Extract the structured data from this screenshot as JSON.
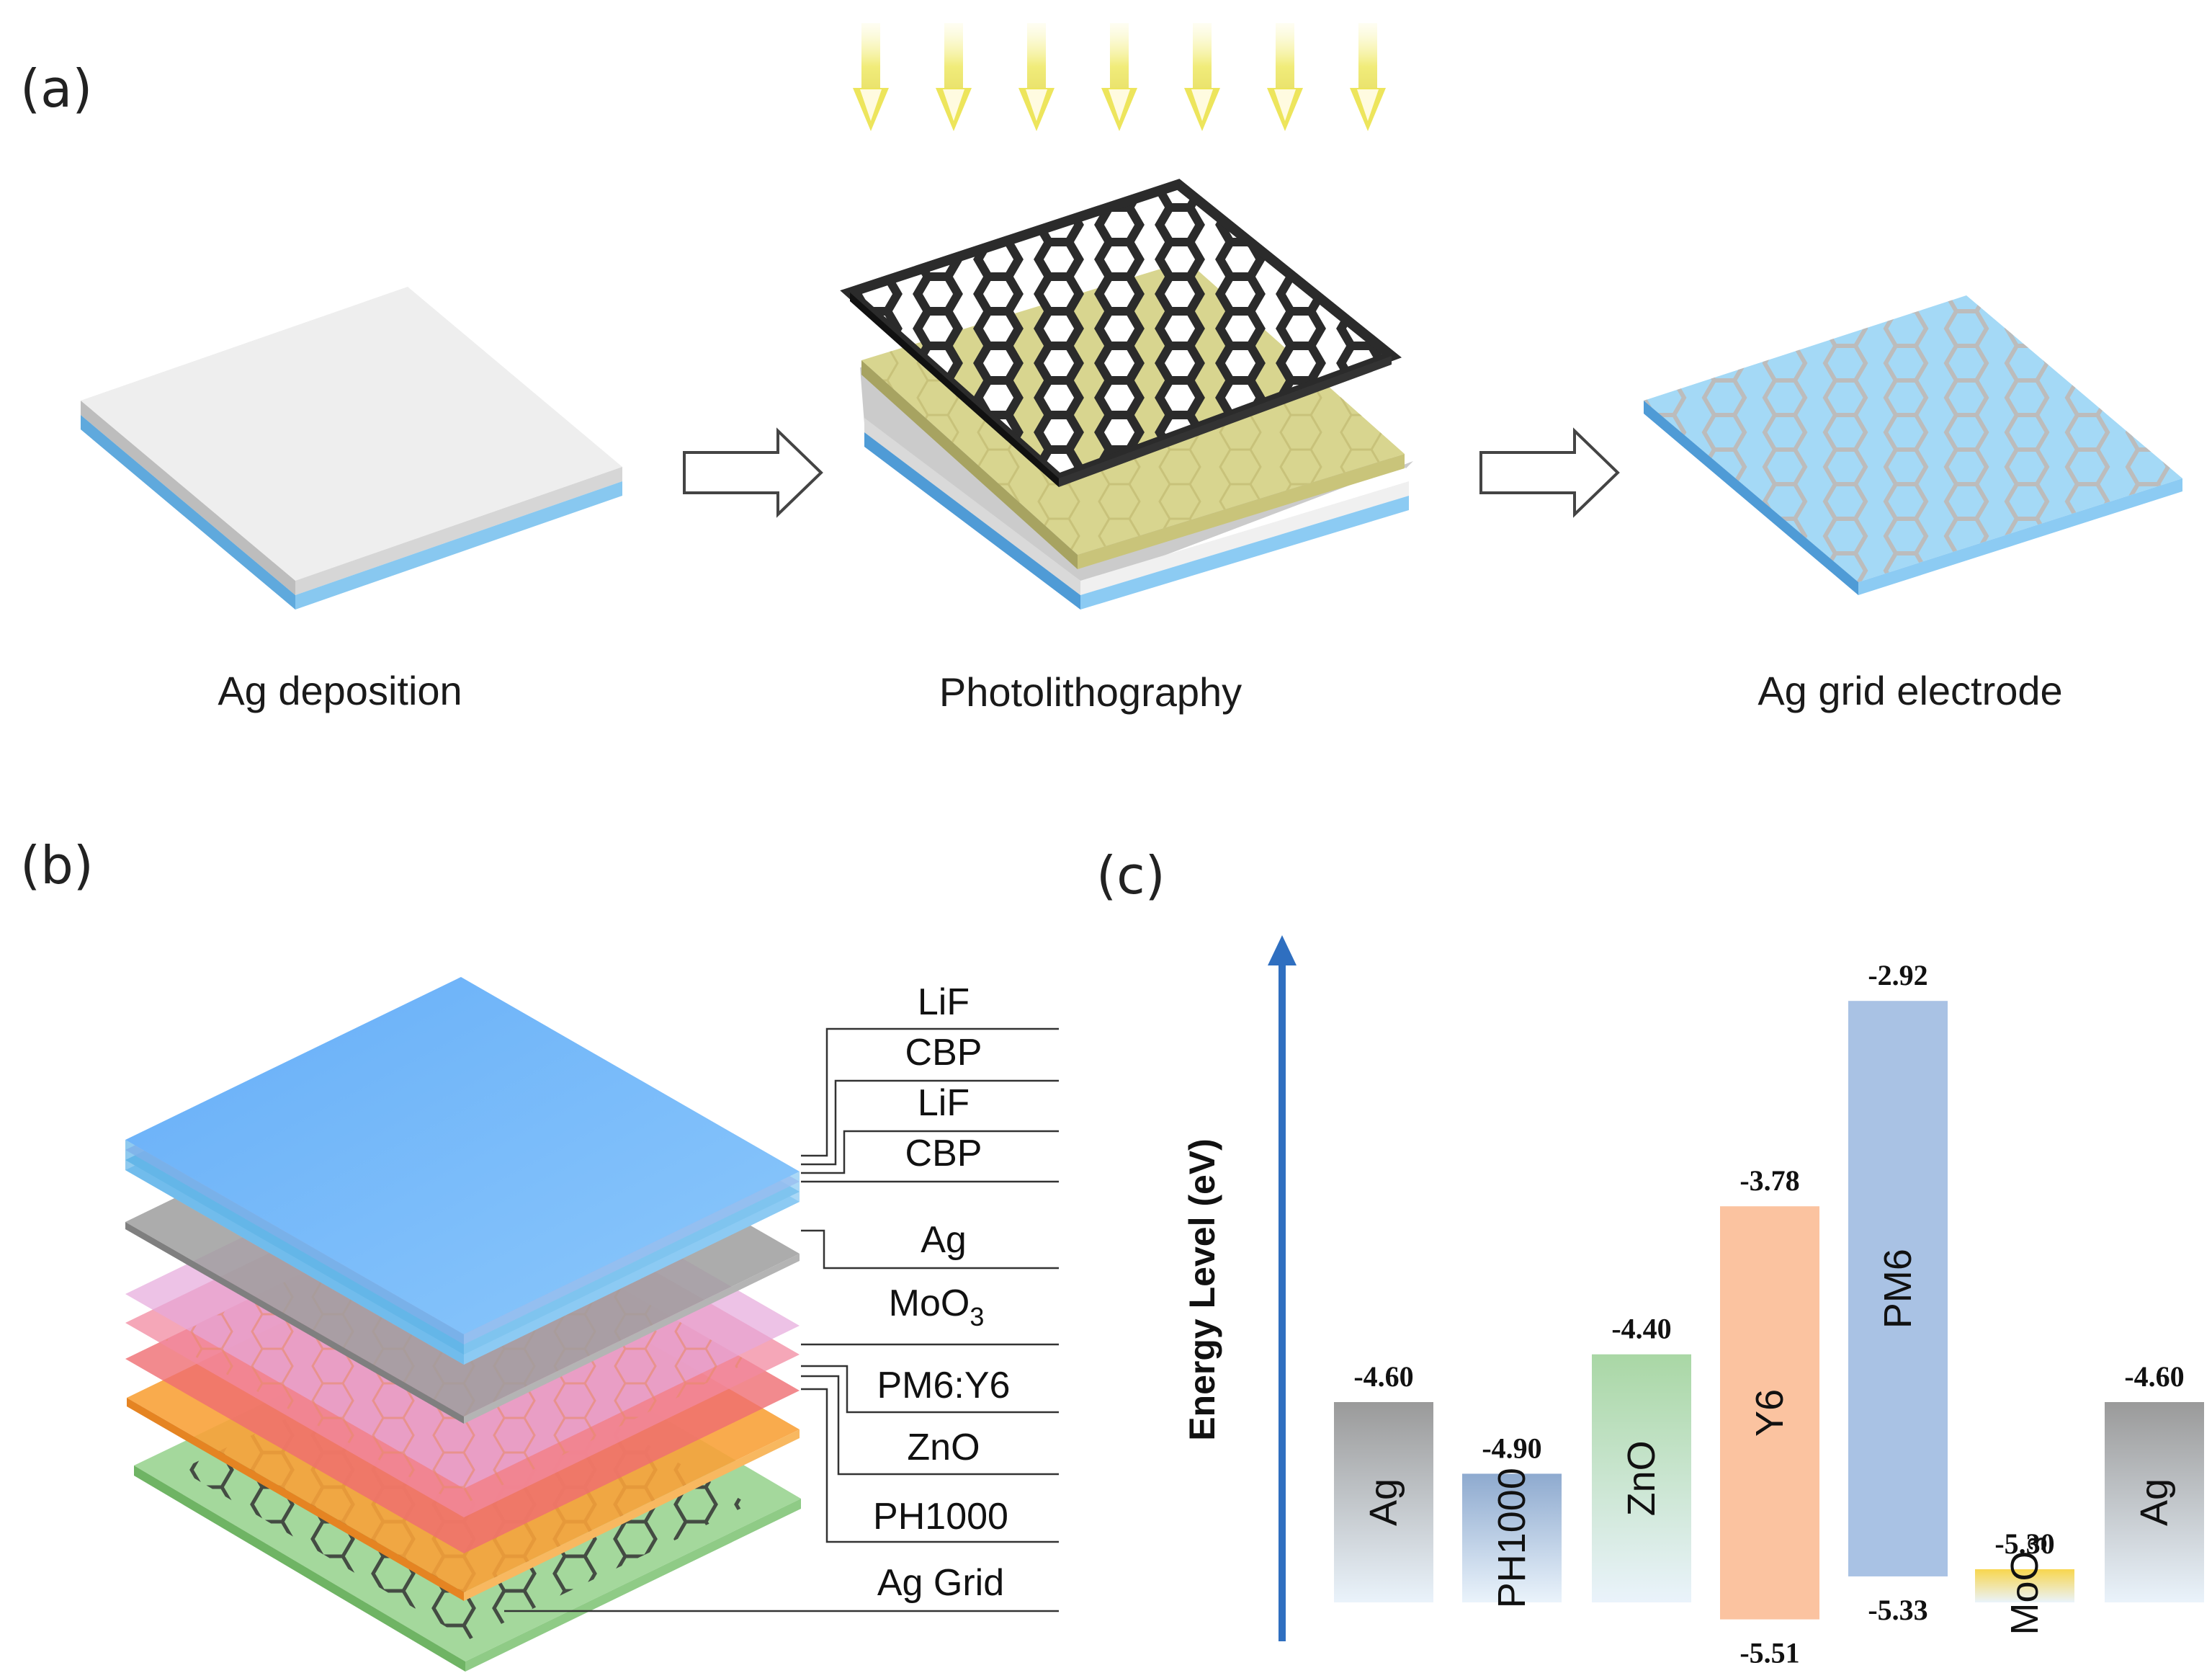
{
  "panel_a": {
    "label": "(a)",
    "steps": [
      {
        "caption": "Ag deposition"
      },
      {
        "caption": "Photolithography"
      },
      {
        "caption": "Ag grid electrode"
      }
    ]
  },
  "panel_b": {
    "label": "(b)",
    "layers": [
      "LiF",
      "CBP",
      "LiF",
      "CBP",
      "Ag",
      "MoO",
      "PM6:Y6",
      "ZnO",
      "PH1000",
      "Ag Grid"
    ],
    "moo3_subscript": "3"
  },
  "panel_c": {
    "label": "(c)"
  },
  "chart_data": {
    "type": "bar",
    "title": "",
    "ylabel": "Energy Level (eV)",
    "xlabel": "",
    "ylim": [
      -6.0,
      -2.5
    ],
    "categories": [
      "Ag",
      "PH1000",
      "ZnO",
      "Y6",
      "PM6",
      "MoO3",
      "Ag"
    ],
    "bars": [
      {
        "name": "Ag",
        "sub": "",
        "top": -4.6,
        "bottom": null,
        "top_label": "-4.60",
        "bottom_label": "",
        "color": "#9a9a9a"
      },
      {
        "name": "PH1000",
        "sub": "",
        "top": -4.9,
        "bottom": null,
        "top_label": "-4.90",
        "bottom_label": "",
        "color": "#8eaacf"
      },
      {
        "name": "ZnO",
        "sub": "",
        "top": -4.4,
        "bottom": null,
        "top_label": "-4.40",
        "bottom_label": "",
        "color": "#a9d7a5"
      },
      {
        "name": "Y6",
        "sub": "",
        "top": -3.78,
        "bottom": -5.51,
        "top_label": "-3.78",
        "bottom_label": "-5.51",
        "color": "#fbc3a0"
      },
      {
        "name": "PM6",
        "sub": "",
        "top": -2.92,
        "bottom": -5.33,
        "top_label": "-2.92",
        "bottom_label": "-5.33",
        "color": "#a9c2e4"
      },
      {
        "name": "MoO",
        "sub": "3",
        "top": -5.3,
        "bottom": null,
        "top_label": "-5.30",
        "bottom_label": "",
        "color": "#f8d64e"
      },
      {
        "name": "Ag",
        "sub": "",
        "top": -4.6,
        "bottom": null,
        "top_label": "-4.60",
        "bottom_label": "",
        "color": "#9a9a9a"
      }
    ]
  },
  "colors": {
    "axis_arrow": "#2f6fc0",
    "substrate_blue": "#7cc1ee",
    "silver": "#e8e8e8",
    "photoresist": "#d8d58f",
    "mask": "#2b2b2b",
    "light_arrow": "#f3ef8c"
  }
}
